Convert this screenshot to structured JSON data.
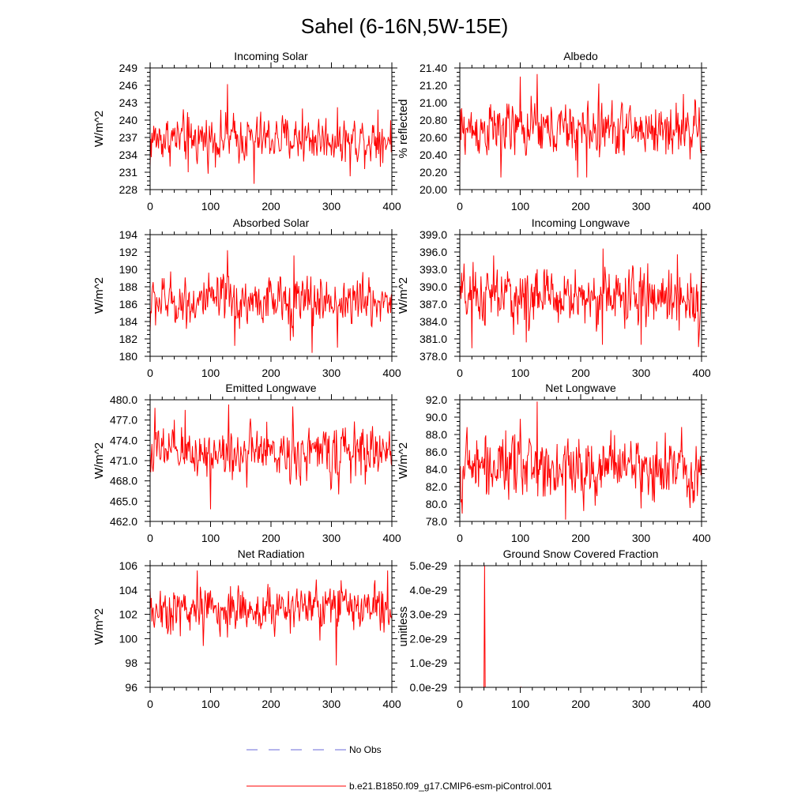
{
  "figure": {
    "title": "Sahel (6-16N,5W-15E)"
  },
  "legend": {
    "entries": [
      {
        "label": "No Obs",
        "style": "dashed",
        "color": "#6a6ad8"
      },
      {
        "label": "b.e21.B1850.f09_g17.CMIP6-esm-piControl.001",
        "style": "solid",
        "color": "#ff0000"
      }
    ]
  },
  "colors": {
    "series": "#ff0000",
    "axis": "#000000"
  },
  "chart_data": [
    {
      "type": "line",
      "title": "Incoming Solar",
      "ylabel": "W/m^2",
      "xlim": [
        0,
        400
      ],
      "xticks": [
        0,
        100,
        200,
        300,
        400
      ],
      "xtick_labels": [
        "0",
        "100",
        "200",
        "300",
        "400"
      ],
      "ylim": [
        228,
        249
      ],
      "yticks": [
        228,
        231,
        234,
        237,
        240,
        243,
        246,
        249
      ],
      "ytick_labels": [
        "228",
        "231",
        "234",
        "237",
        "240",
        "243",
        "246",
        "249"
      ],
      "series": [
        {
          "name": "b.e21.B1850.f09_g17.CMIP6-esm-piControl.001",
          "n": 400,
          "mean": 236.8,
          "std": 2.1,
          "spikes": [
            [
              0,
              231.8
            ],
            [
              128,
              246.2
            ],
            [
              172,
              229.0
            ],
            [
              63,
              231.0
            ],
            [
              331,
              230.3
            ],
            [
              377,
              241.8
            ],
            [
              252,
              242.0
            ]
          ]
        }
      ]
    },
    {
      "type": "line",
      "title": "Albedo",
      "ylabel": "% reflected",
      "xlim": [
        0,
        400
      ],
      "xticks": [
        0,
        100,
        200,
        300,
        400
      ],
      "xtick_labels": [
        "0",
        "100",
        "200",
        "300",
        "400"
      ],
      "ylim": [
        20.0,
        21.4
      ],
      "yticks": [
        20.0,
        20.2,
        20.4,
        20.6,
        20.8,
        21.0,
        21.2,
        21.4
      ],
      "ytick_labels": [
        "20.00",
        "20.20",
        "20.40",
        "20.60",
        "20.80",
        "21.00",
        "21.20",
        "21.40"
      ],
      "series": [
        {
          "name": "b.e21.B1850.f09_g17.CMIP6-esm-piControl.001",
          "n": 400,
          "mean": 20.69,
          "std": 0.16,
          "spikes": [
            [
              0,
              20.25
            ],
            [
              100,
              21.3
            ],
            [
              128,
              21.33
            ],
            [
              68,
              20.14
            ],
            [
              195,
              20.14
            ],
            [
              210,
              20.14
            ],
            [
              230,
              21.22
            ],
            [
              370,
              21.1
            ]
          ]
        }
      ]
    },
    {
      "type": "line",
      "title": "Absorbed Solar",
      "ylabel": "W/m^2",
      "xlim": [
        0,
        400
      ],
      "xticks": [
        0,
        100,
        200,
        300,
        400
      ],
      "xtick_labels": [
        "0",
        "100",
        "200",
        "300",
        "400"
      ],
      "ylim": [
        180,
        194
      ],
      "yticks": [
        180,
        182,
        184,
        186,
        188,
        190,
        192,
        194
      ],
      "ytick_labels": [
        "180",
        "182",
        "184",
        "186",
        "188",
        "190",
        "192",
        "194"
      ],
      "series": [
        {
          "name": "b.e21.B1850.f09_g17.CMIP6-esm-piControl.001",
          "n": 400,
          "mean": 186.3,
          "std": 1.5,
          "spikes": [
            [
              0,
              182.8
            ],
            [
              128,
              192.2
            ],
            [
              268,
              180.4
            ],
            [
              140,
              181.2
            ],
            [
              310,
              181.0
            ],
            [
              238,
              191.6
            ],
            [
              232,
              181.8
            ]
          ]
        }
      ]
    },
    {
      "type": "line",
      "title": "Incoming Longwave",
      "ylabel": "W/m^2",
      "xlim": [
        0,
        400
      ],
      "xticks": [
        0,
        100,
        200,
        300,
        400
      ],
      "xtick_labels": [
        "0",
        "100",
        "200",
        "300",
        "400"
      ],
      "ylim": [
        378,
        399
      ],
      "yticks": [
        378,
        381,
        384,
        387,
        390,
        393,
        396,
        399
      ],
      "ytick_labels": [
        "378.0",
        "381.0",
        "384.0",
        "387.0",
        "390.0",
        "393.0",
        "396.0",
        "399.0"
      ],
      "series": [
        {
          "name": "b.e21.B1850.f09_g17.CMIP6-esm-piControl.001",
          "n": 400,
          "mean": 388.2,
          "std": 2.6,
          "spikes": [
            [
              237,
              396.6
            ],
            [
              20,
              379.4
            ],
            [
              236,
              380.0
            ],
            [
              395,
              379.6
            ],
            [
              56,
              395.4
            ],
            [
              110,
              380.4
            ],
            [
              360,
              395.6
            ],
            [
              300,
              380.0
            ]
          ]
        }
      ]
    },
    {
      "type": "line",
      "title": "Emitted Longwave",
      "ylabel": "W/m^2",
      "xlim": [
        0,
        400
      ],
      "xticks": [
        0,
        100,
        200,
        300,
        400
      ],
      "xtick_labels": [
        "0",
        "100",
        "200",
        "300",
        "400"
      ],
      "ylim": [
        462,
        480
      ],
      "yticks": [
        462,
        465,
        468,
        471,
        474,
        477,
        480
      ],
      "ytick_labels": [
        "462.0",
        "465.0",
        "468.0",
        "471.0",
        "474.0",
        "477.0",
        "480.0"
      ],
      "series": [
        {
          "name": "b.e21.B1850.f09_g17.CMIP6-esm-piControl.001",
          "n": 400,
          "mean": 472.2,
          "std": 2.0,
          "spikes": [
            [
              100,
              463.8
            ],
            [
              130,
              479.3
            ],
            [
              236,
              479.0
            ],
            [
              8,
              478.8
            ],
            [
              58,
              478.5
            ],
            [
              312,
              466.0
            ],
            [
              160,
              467.0
            ]
          ]
        }
      ]
    },
    {
      "type": "line",
      "title": "Net Longwave",
      "ylabel": "W/m^2",
      "xlim": [
        0,
        400
      ],
      "xticks": [
        0,
        100,
        200,
        300,
        400
      ],
      "xtick_labels": [
        "0",
        "100",
        "200",
        "300",
        "400"
      ],
      "ylim": [
        78,
        92
      ],
      "yticks": [
        78,
        80,
        82,
        84,
        86,
        88,
        90,
        92
      ],
      "ytick_labels": [
        "78.0",
        "80.0",
        "82.0",
        "84.0",
        "86.0",
        "88.0",
        "90.0",
        "92.0"
      ],
      "series": [
        {
          "name": "b.e21.B1850.f09_g17.CMIP6-esm-piControl.001",
          "n": 400,
          "mean": 84.3,
          "std": 1.9,
          "spikes": [
            [
              128,
              91.8
            ],
            [
              175,
              78.2
            ],
            [
              2,
              80.2
            ],
            [
              100,
              89.8
            ],
            [
              300,
              79.5
            ],
            [
              205,
              79.2
            ],
            [
              250,
              88.5
            ]
          ]
        }
      ]
    },
    {
      "type": "line",
      "title": "Net Radiation",
      "ylabel": "W/m^2",
      "xlim": [
        0,
        400
      ],
      "xticks": [
        0,
        100,
        200,
        300,
        400
      ],
      "xtick_labels": [
        "0",
        "100",
        "200",
        "300",
        "400"
      ],
      "ylim": [
        96,
        106
      ],
      "yticks": [
        96,
        98,
        100,
        102,
        104,
        106
      ],
      "ytick_labels": [
        "96",
        "98",
        "100",
        "102",
        "104",
        "106"
      ],
      "series": [
        {
          "name": "b.e21.B1850.f09_g17.CMIP6-esm-piControl.001",
          "n": 400,
          "mean": 102.4,
          "std": 1.0,
          "spikes": [
            [
              308,
              97.8
            ],
            [
              393,
              105.6
            ],
            [
              78,
              105.6
            ],
            [
              88,
              99.4
            ],
            [
              316,
              104.8
            ],
            [
              195,
              104.5
            ],
            [
              50,
              100.2
            ]
          ]
        }
      ]
    },
    {
      "type": "line",
      "title": "Ground Snow Covered Fraction",
      "ylabel": "unitless",
      "xlim": [
        0,
        400
      ],
      "xticks": [
        0,
        100,
        200,
        300,
        400
      ],
      "xtick_labels": [
        "0",
        "100",
        "200",
        "300",
        "400"
      ],
      "ylim": [
        0,
        5e-29
      ],
      "yticks": [
        0,
        1e-29,
        2e-29,
        3e-29,
        4e-29,
        5e-29
      ],
      "ytick_labels": [
        "0.0e-29",
        "1.0e-29",
        "2.0e-29",
        "3.0e-29",
        "4.0e-29",
        "5.0e-29"
      ],
      "series": [
        {
          "name": "b.e21.B1850.f09_g17.CMIP6-esm-piControl.001",
          "n": 400,
          "mean": 0,
          "std": 0,
          "spikes": [
            [
              41,
              5e-29
            ],
            [
              101,
              1e-31
            ]
          ]
        }
      ]
    }
  ]
}
